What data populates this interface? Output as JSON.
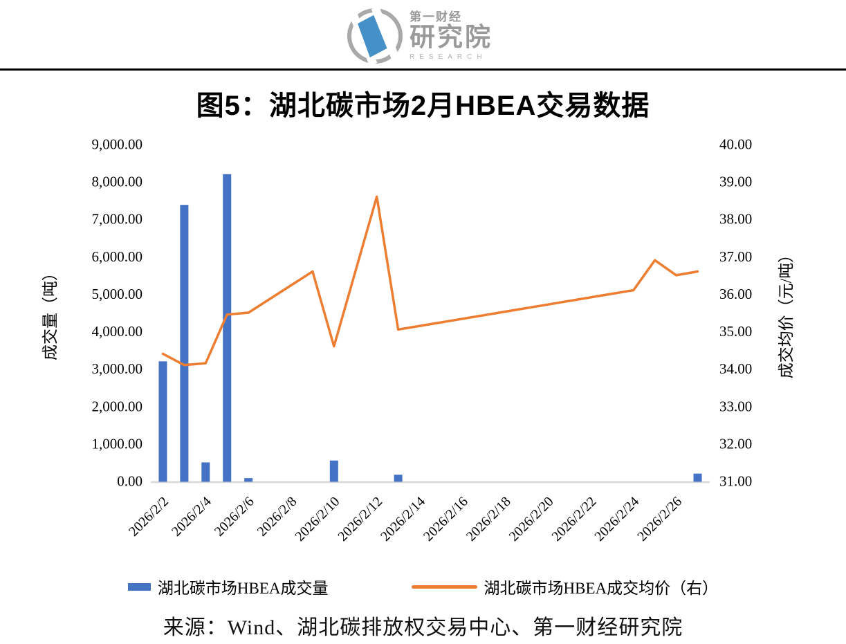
{
  "header": {
    "logo": {
      "brand_small": "第一财经",
      "brand_large": "研究院",
      "brand_en": "RESEARCH",
      "blue": "#4590C6",
      "gray": "#A9A9A9"
    }
  },
  "chart_data": {
    "type": "combo",
    "title": "图5：湖北碳市场2月HBEA交易数据",
    "categories": [
      "2026/2/2",
      "2026/2/3",
      "2026/2/4",
      "2026/2/5",
      "2026/2/6",
      "2026/2/7",
      "2026/2/8",
      "2026/2/9",
      "2026/2/10",
      "2026/2/11",
      "2026/2/12",
      "2026/2/13",
      "2026/2/14",
      "2026/2/15",
      "2026/2/16",
      "2026/2/17",
      "2026/2/18",
      "2026/2/19",
      "2026/2/20",
      "2026/2/21",
      "2026/2/22",
      "2026/2/23",
      "2026/2/24",
      "2026/2/25",
      "2026/2/26",
      "2026/2/27"
    ],
    "x_axis": {
      "labels_shown_every": 2,
      "shown_labels": [
        "2026/2/2",
        "2026/2/4",
        "2026/2/6",
        "2026/2/8",
        "2026/2/10",
        "2026/2/12",
        "2026/2/14",
        "2026/2/16",
        "2026/2/18",
        "2026/2/20",
        "2026/2/22",
        "2026/2/24",
        "2026/2/26"
      ]
    },
    "series": [
      {
        "name": "湖北碳市场HBEA成交量",
        "type": "bar",
        "axis": "left",
        "color": "#4472C4",
        "values": [
          3200,
          7380,
          500,
          8200,
          80,
          null,
          null,
          null,
          550,
          null,
          null,
          170,
          null,
          null,
          null,
          null,
          null,
          null,
          null,
          null,
          null,
          null,
          null,
          null,
          null,
          200
        ]
      },
      {
        "name": "湖北碳市场HBEA成交均价（右）",
        "type": "line",
        "axis": "right",
        "color": "#ED7D31",
        "values": [
          34.4,
          34.1,
          34.15,
          35.45,
          35.5,
          null,
          null,
          36.6,
          34.6,
          null,
          38.6,
          35.05,
          null,
          null,
          null,
          null,
          null,
          null,
          null,
          null,
          null,
          null,
          36.1,
          36.9,
          36.5,
          36.6
        ]
      }
    ],
    "left_axis": {
      "title": "成交量（吨）",
      "min": 0,
      "max": 9000,
      "step": 1000,
      "tick_labels": [
        "0.00",
        "1,000.00",
        "2,000.00",
        "3,000.00",
        "4,000.00",
        "5,000.00",
        "6,000.00",
        "7,000.00",
        "8,000.00",
        "9,000.00"
      ]
    },
    "right_axis": {
      "title": "成交均价（元/吨）",
      "min": 31,
      "max": 40,
      "step": 1,
      "tick_labels": [
        "31.00",
        "32.00",
        "33.00",
        "34.00",
        "35.00",
        "36.00",
        "37.00",
        "38.00",
        "39.00",
        "40.00"
      ]
    },
    "grid": false,
    "legend_position": "bottom",
    "axis_line_color": "#D6D6D6"
  },
  "footer": {
    "source": "来源：Wind、湖北碳排放权交易中心、第一财经研究院"
  }
}
